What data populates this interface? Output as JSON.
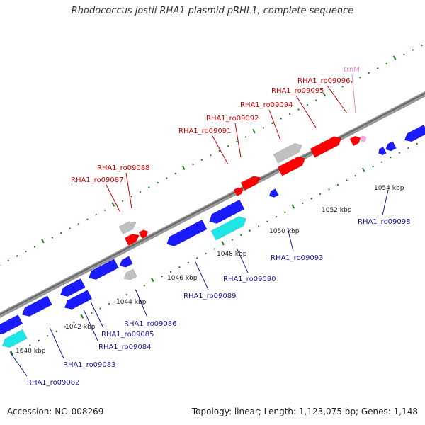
{
  "title": "Rhodococcus jostii RHA1 plasmid pRHL1, complete sequence",
  "footer": {
    "accession": "Accession: NC_008269",
    "stats": "Topology: linear; Length: 1,123,075 bp; Genes: 1,148"
  },
  "colors": {
    "forward_gene": "#ff0000",
    "reverse_gene": "#1a1aff",
    "cyan_gene": "#1ee6e6",
    "grey_gene": "#c0c0c0",
    "trna": "#ffaadd",
    "tick": "#1a7a1a",
    "label_forward": "#cc0000",
    "label_reverse": "#1a1aa0",
    "label_trna": "#ee88cc"
  },
  "scale_labels": [
    "1040 kbp",
    "1042 kbp",
    "1044 kbp",
    "1046 kbp",
    "1048 kbp",
    "1050 kbp",
    "1052 kbp",
    "1054 kbp"
  ],
  "forward_labels": [
    {
      "text": "RHA1_ro09087"
    },
    {
      "text": "RHA1_ro09088"
    },
    {
      "text": "RHA1_ro09091"
    },
    {
      "text": "RHA1_ro09092"
    },
    {
      "text": "RHA1_ro09094"
    },
    {
      "text": "RHA1_ro09095"
    },
    {
      "text": "RHA1_ro09096"
    },
    {
      "text": "trnM"
    }
  ],
  "reverse_labels": [
    {
      "text": "RHA1_ro09082"
    },
    {
      "text": "RHA1_ro09083"
    },
    {
      "text": "RHA1_ro09084"
    },
    {
      "text": "RHA1_ro09085"
    },
    {
      "text": "RHA1_ro09086"
    },
    {
      "text": "RHA1_ro09089"
    },
    {
      "text": "RHA1_ro09090"
    },
    {
      "text": "RHA1_ro09093"
    },
    {
      "text": "RHA1_ro09098"
    }
  ]
}
